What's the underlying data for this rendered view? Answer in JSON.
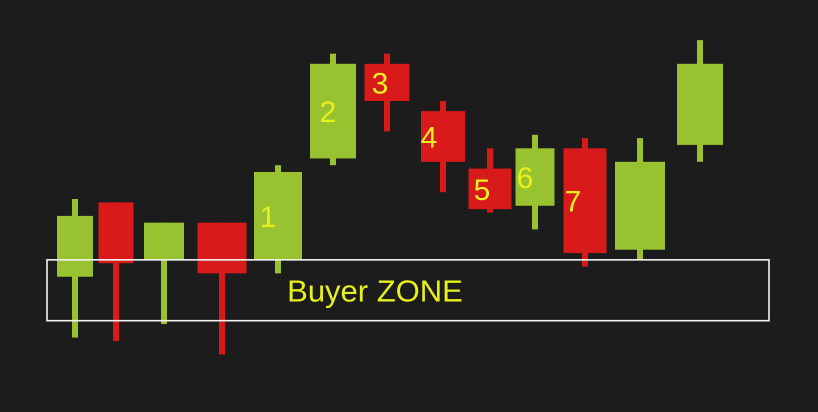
{
  "colors": {
    "background": "#1c1c1c",
    "bullish": "#98c22f",
    "bearish": "#d81a1a",
    "label": "#e8f01e",
    "zone_border": "#f4f4f4"
  },
  "zone": {
    "label": "Buyer ZONE",
    "low": 10,
    "high": 28
  },
  "chart_data": {
    "type": "candlestick",
    "title": "",
    "xlabel": "",
    "ylabel": "",
    "ylim": [
      -4,
      96
    ],
    "grid": false,
    "candles": [
      {
        "open": 23,
        "close": 41,
        "high": 46,
        "low": 5,
        "label": ""
      },
      {
        "open": 45,
        "close": 27,
        "high": 45,
        "low": 4,
        "label": ""
      },
      {
        "open": 28,
        "close": 39,
        "high": 39,
        "low": 9,
        "label": ""
      },
      {
        "open": 39,
        "close": 24,
        "high": 39,
        "low": 0,
        "label": ""
      },
      {
        "open": 28,
        "close": 54,
        "high": 56,
        "low": 24,
        "label": "1"
      },
      {
        "open": 58,
        "close": 86,
        "high": 89,
        "low": 56,
        "label": "2"
      },
      {
        "open": 86,
        "close": 75,
        "high": 89,
        "low": 66,
        "label": "3"
      },
      {
        "open": 72,
        "close": 57,
        "high": 75,
        "low": 48,
        "label": "4"
      },
      {
        "open": 55,
        "close": 43,
        "high": 61,
        "low": 42,
        "label": "5"
      },
      {
        "open": 44,
        "close": 61,
        "high": 65,
        "low": 37,
        "label": "6"
      },
      {
        "open": 61,
        "close": 30,
        "high": 64,
        "low": 26,
        "label": "7"
      },
      {
        "open": 31,
        "close": 57,
        "high": 64,
        "low": 28,
        "label": ""
      },
      {
        "open": 62,
        "close": 86,
        "high": 93,
        "low": 57,
        "label": ""
      }
    ]
  }
}
